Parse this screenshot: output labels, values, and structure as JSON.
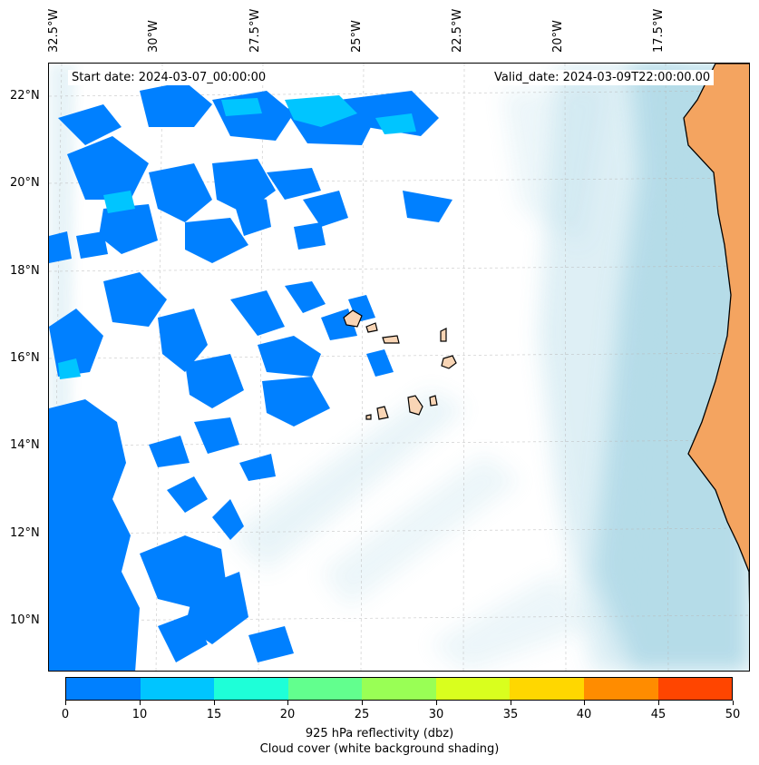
{
  "map": {
    "start_date": "Start date: 2024-03-07_00:00:00",
    "valid_date": "Valid_date: 2024-03-09T22:00:00.00",
    "lon_labels": [
      "32.5°W",
      "30°W",
      "27.5°W",
      "25°W",
      "22.5°W",
      "20°W",
      "17.5°W"
    ],
    "lat_labels": [
      "22°N",
      "20°N",
      "18°N",
      "16°N",
      "14°N",
      "12°N",
      "10°N"
    ],
    "colors": {
      "land": "#f4a460",
      "island_fill": "#f9d5b5",
      "cloud": "#add8e6",
      "reflectivity_low": "#0080ff",
      "reflectivity_mid": "#00c5ff"
    }
  },
  "colorbar": {
    "ticks": [
      "0",
      "10",
      "15",
      "20",
      "25",
      "30",
      "35",
      "40",
      "45",
      "50"
    ],
    "colors": [
      "#0080ff",
      "#00c5ff",
      "#1effd8",
      "#62ff8e",
      "#99ff55",
      "#d9ff1e",
      "#ffd700",
      "#ff8c00",
      "#ff4500"
    ],
    "label": "925 hPa reflectivity (dbz)",
    "sublabel": "Cloud cover (white background shading)"
  }
}
